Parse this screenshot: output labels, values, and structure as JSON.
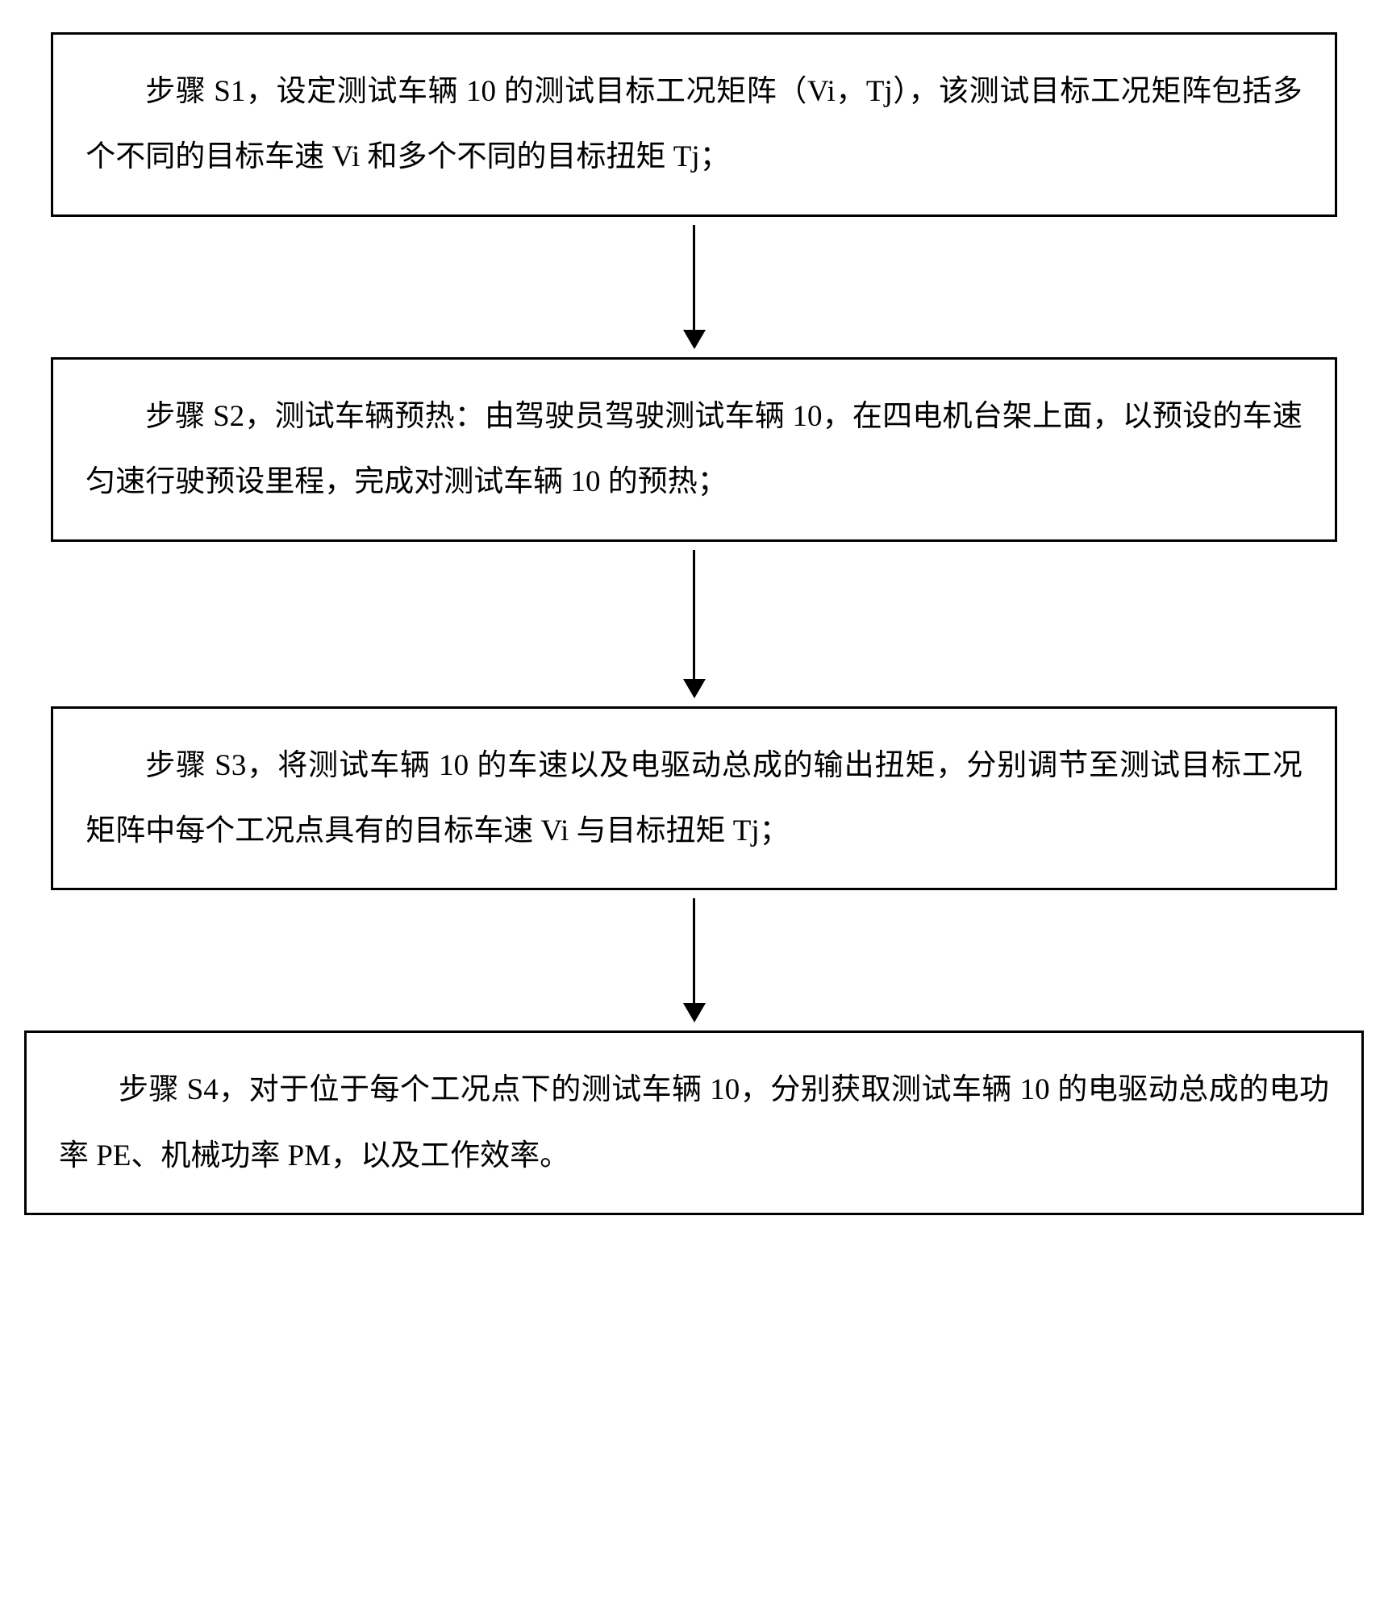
{
  "flowchart": {
    "type": "flowchart",
    "direction": "vertical",
    "background_color": "#ffffff",
    "box_border_color": "#000000",
    "box_border_width": 3,
    "text_color": "#000000",
    "font_family": "SimSun",
    "font_size_pt": 28,
    "line_height": 2.2,
    "text_indent_em": 2,
    "arrow_color": "#000000",
    "arrow_line_width": 3,
    "arrow_head_width": 28,
    "arrow_head_height": 24,
    "steps": [
      {
        "id": "s1",
        "text": "步骤 S1，设定测试车辆 10 的测试目标工况矩阵（Vi，Tj），该测试目标工况矩阵包括多个不同的目标车速 Vi 和多个不同的目标扭矩 Tj；",
        "box_width_pct": 96,
        "arrow_after_height": 130
      },
      {
        "id": "s2",
        "text": "步骤 S2，测试车辆预热：由驾驶员驾驶测试车辆 10，在四电机台架上面，以预设的车速匀速行驶预设里程，完成对测试车辆 10 的预热；",
        "box_width_pct": 96,
        "arrow_after_height": 160
      },
      {
        "id": "s3",
        "text": "步骤 S3，将测试车辆 10 的车速以及电驱动总成的输出扭矩，分别调节至测试目标工况矩阵中每个工况点具有的目标车速 Vi 与目标扭矩 Tj；",
        "box_width_pct": 96,
        "arrow_after_height": 130
      },
      {
        "id": "s4",
        "text": "步骤 S4，对于位于每个工况点下的测试车辆 10，分别获取测试车辆 10 的电驱动总成的电功率 PE、机械功率 PM，以及工作效率。",
        "box_width_pct": 100,
        "arrow_after_height": 0
      }
    ]
  }
}
